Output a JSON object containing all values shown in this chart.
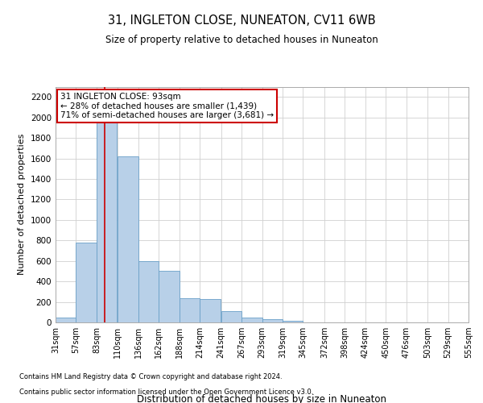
{
  "title": "31, INGLETON CLOSE, NUNEATON, CV11 6WB",
  "subtitle": "Size of property relative to detached houses in Nuneaton",
  "xlabel": "Distribution of detached houses by size in Nuneaton",
  "ylabel": "Number of detached properties",
  "footer_line1": "Contains HM Land Registry data © Crown copyright and database right 2024.",
  "footer_line2": "Contains public sector information licensed under the Open Government Licence v3.0.",
  "property_label": "31 INGLETON CLOSE: 93sqm",
  "annotation_line2": "← 28% of detached houses are smaller (1,439)",
  "annotation_line3": "71% of semi-detached houses are larger (3,681) →",
  "property_size": 93,
  "bar_color": "#b8d0e8",
  "bar_edge_color": "#6aa0c8",
  "red_line_color": "#cc0000",
  "annotation_box_edge": "#cc0000",
  "background_color": "#ffffff",
  "plot_bg_color": "#ffffff",
  "grid_color": "#d0d0d0",
  "bins": [
    31,
    57,
    83,
    110,
    136,
    162,
    188,
    214,
    241,
    267,
    293,
    319,
    345,
    372,
    398,
    424,
    450,
    476,
    503,
    529,
    555
  ],
  "bin_labels": [
    "31sqm",
    "57sqm",
    "83sqm",
    "110sqm",
    "136sqm",
    "162sqm",
    "188sqm",
    "214sqm",
    "241sqm",
    "267sqm",
    "293sqm",
    "319sqm",
    "345sqm",
    "372sqm",
    "398sqm",
    "424sqm",
    "450sqm",
    "476sqm",
    "503sqm",
    "529sqm",
    "555sqm"
  ],
  "values": [
    50,
    780,
    2050,
    1620,
    600,
    500,
    235,
    230,
    110,
    50,
    28,
    15,
    0,
    0,
    0,
    0,
    0,
    0,
    0,
    0
  ],
  "ylim": [
    0,
    2300
  ],
  "yticks": [
    0,
    200,
    400,
    600,
    800,
    1000,
    1200,
    1400,
    1600,
    1800,
    2000,
    2200
  ]
}
